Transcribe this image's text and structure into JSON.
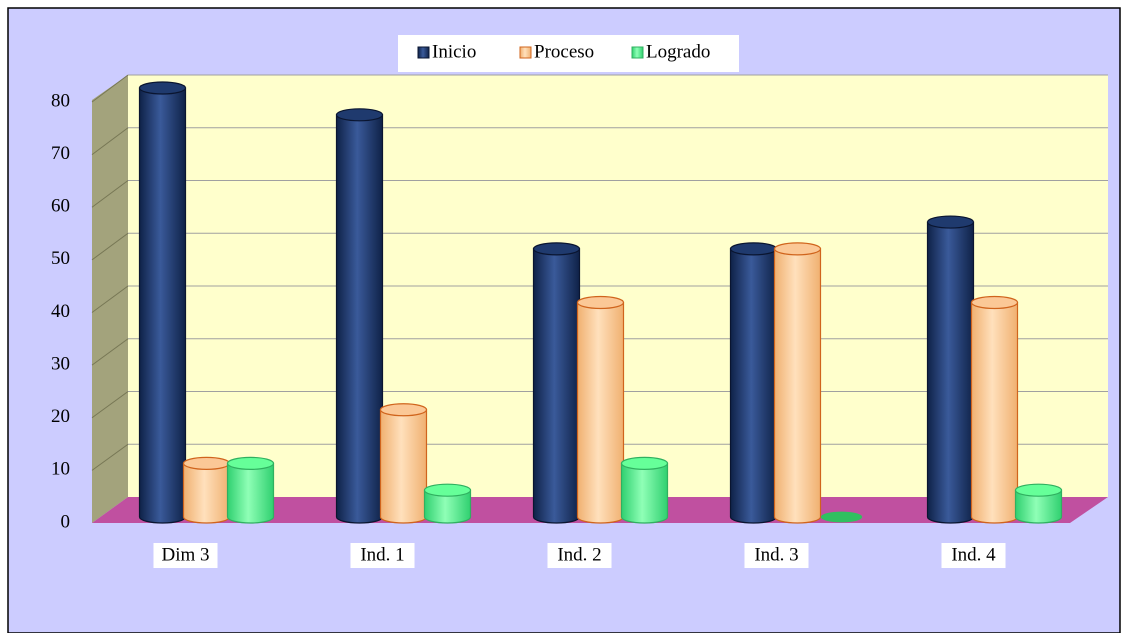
{
  "chart_data": {
    "type": "bar3d",
    "categories": [
      "Dim 3",
      "Ind. 1",
      "Ind. 2",
      "Ind. 3",
      "Ind. 4"
    ],
    "series": [
      {
        "name": "Inicio",
        "color": "#1f3a6e",
        "values": [
          80,
          75,
          50,
          50,
          55
        ]
      },
      {
        "name": "Proceso",
        "color": "#fbc896",
        "values": [
          10,
          20,
          40,
          50,
          40
        ]
      },
      {
        "name": "Logrado",
        "color": "#66ff99",
        "values": [
          10,
          5,
          10,
          0,
          5
        ]
      }
    ],
    "ylim": [
      0,
      80
    ],
    "yticks": [
      0,
      10,
      20,
      30,
      40,
      50,
      60,
      70,
      80
    ],
    "grid": true,
    "legend": "top"
  }
}
